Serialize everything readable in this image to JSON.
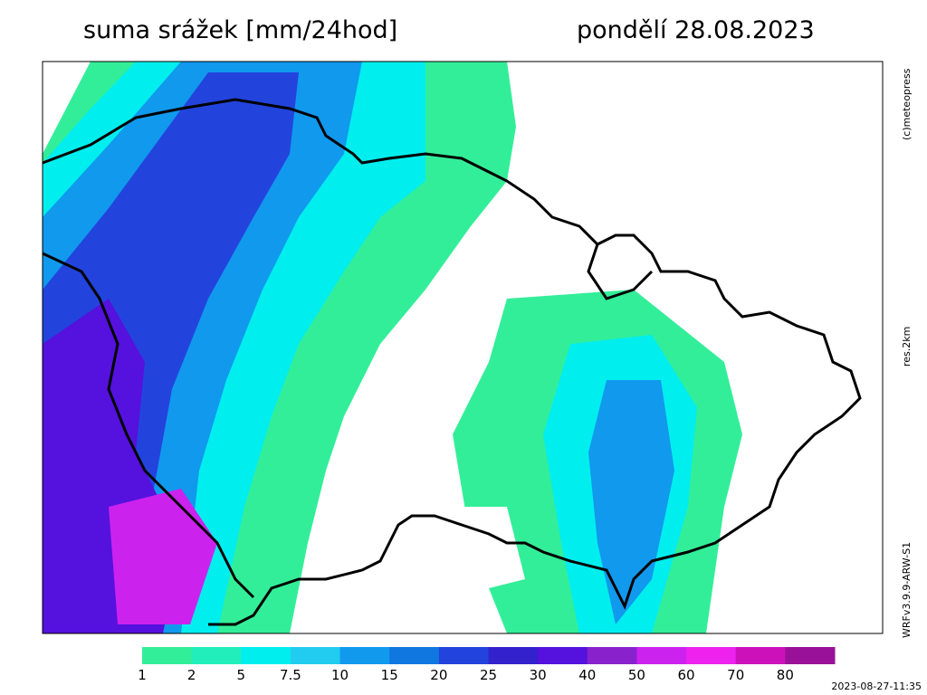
{
  "header": {
    "title": "suma srážek [mm/24hod]",
    "date": "pondělí 28.08.2023"
  },
  "side_labels": {
    "copyright": "(c)meteopress",
    "resolution": "res.2km",
    "model": "WRFv3.9.9-ARW-S1"
  },
  "legend": {
    "levels": [
      {
        "label": "1",
        "color": "#33ee99"
      },
      {
        "label": "2",
        "color": "#22eebb"
      },
      {
        "label": "5",
        "color": "#00eeee"
      },
      {
        "label": "7.5",
        "color": "#22ccf0"
      },
      {
        "label": "10",
        "color": "#1199ee"
      },
      {
        "label": "15",
        "color": "#1177e0"
      },
      {
        "label": "20",
        "color": "#2244dd"
      },
      {
        "label": "25",
        "color": "#3322cc"
      },
      {
        "label": "30",
        "color": "#5511dd"
      },
      {
        "label": "40",
        "color": "#8822cc"
      },
      {
        "label": "50",
        "color": "#cc22ee"
      },
      {
        "label": "60",
        "color": "#ee22ee"
      },
      {
        "label": "70",
        "color": "#cc11bb"
      },
      {
        "label": "80",
        "color": "#991199"
      }
    ]
  },
  "timestamp": "2023-08-27-11:35"
}
